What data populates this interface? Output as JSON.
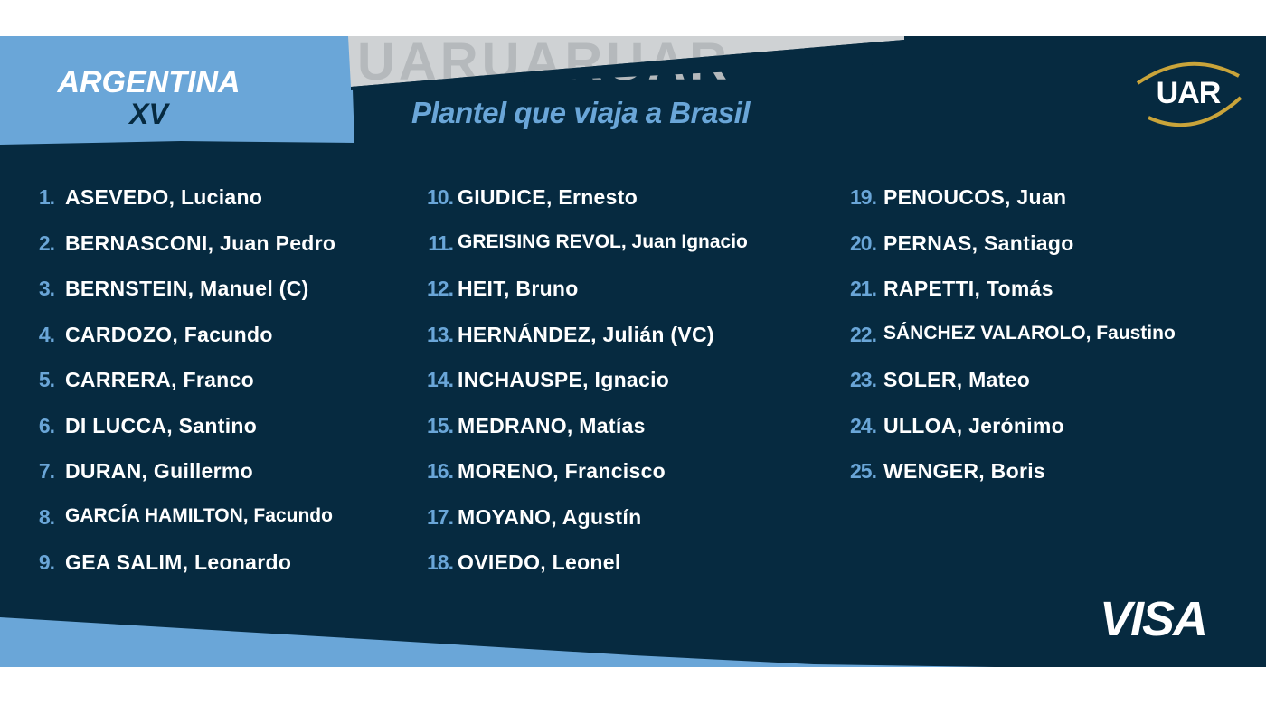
{
  "brand": {
    "line1": "ARGENTINA",
    "line2": "XV"
  },
  "title": "Plantel que viaja a Brasil",
  "logos": {
    "uar": "UAR",
    "sponsor": "VISA"
  },
  "colors": {
    "navy": "#062a40",
    "light_blue": "#6aa6d8",
    "gold": "#c9a43a"
  },
  "columns": [
    [
      {
        "num": "1.",
        "name": "ASEVEDO, Luciano"
      },
      {
        "num": "2.",
        "name": "BERNASCONI, Juan Pedro"
      },
      {
        "num": "3.",
        "name": "BERNSTEIN, Manuel (C)"
      },
      {
        "num": "4.",
        "name": "CARDOZO, Facundo"
      },
      {
        "num": "5.",
        "name": "CARRERA, Franco"
      },
      {
        "num": "6.",
        "name": "DI LUCCA, Santino"
      },
      {
        "num": "7.",
        "name": "DURAN, Guillermo"
      },
      {
        "num": "8.",
        "name": "GARCÍA HAMILTON, Facundo"
      },
      {
        "num": "9.",
        "name": "GEA SALIM, Leonardo"
      }
    ],
    [
      {
        "num": "10.",
        "name": "GIUDICE, Ernesto"
      },
      {
        "num": "11.",
        "name": "GREISING REVOL, Juan Ignacio"
      },
      {
        "num": "12.",
        "name": "HEIT, Bruno"
      },
      {
        "num": "13.",
        "name": "HERNÁNDEZ, Julián (VC)"
      },
      {
        "num": "14.",
        "name": "INCHAUSPE, Ignacio"
      },
      {
        "num": "15.",
        "name": "MEDRANO, Matías"
      },
      {
        "num": "16.",
        "name": "MORENO, Francisco"
      },
      {
        "num": "17.",
        "name": "MOYANO, Agustín"
      },
      {
        "num": "18.",
        "name": "OVIEDO, Leonel"
      }
    ],
    [
      {
        "num": "19.",
        "name": "PENOUCOS, Juan"
      },
      {
        "num": "20.",
        "name": "PERNAS, Santiago"
      },
      {
        "num": "21.",
        "name": "RAPETTI, Tomás"
      },
      {
        "num": "22.",
        "name": "SÁNCHEZ VALAROLO, Faustino"
      },
      {
        "num": "23.",
        "name": "SOLER, Mateo"
      },
      {
        "num": "24.",
        "name": "ULLOA, Jerónimo"
      },
      {
        "num": "25.",
        "name": "WENGER, Boris"
      }
    ]
  ]
}
